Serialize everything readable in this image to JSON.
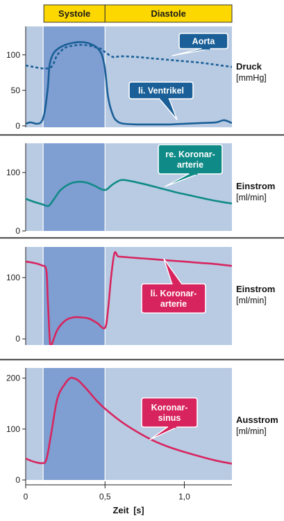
{
  "phases": [
    {
      "label": "Systole",
      "x_start": 0.11,
      "x_end": 0.5
    },
    {
      "label": "Diastole",
      "x_start": 0.5,
      "x_end": 1.3
    }
  ],
  "colors": {
    "background": "#b8cbe3",
    "systole_band": "#7f9ed1",
    "phase_bar": "#fdd800",
    "separator": "#555555",
    "aorta_ventricle": "#1a5f97",
    "coronary_artery_right": "#0f8a86",
    "coronary_artery_left": "#d8245e",
    "coronary_sinus": "#d8245e"
  },
  "x_axis": {
    "label_bold": "Zeit",
    "label_unit": "[s]",
    "min": 0,
    "max": 1.3,
    "ticks": [
      {
        "value": 0,
        "label": "0"
      },
      {
        "value": 0.5,
        "label": "0,5"
      },
      {
        "value": 1.0,
        "label": "1,0"
      }
    ]
  },
  "chart_data": [
    {
      "type": "line",
      "ylabel_bold": "Druck",
      "ylabel_unit": "[mmHg]",
      "ylim": [
        -2,
        140
      ],
      "yticks": [
        {
          "value": 0,
          "label": "0"
        },
        {
          "value": 50,
          "label": "50"
        },
        {
          "value": 100,
          "label": "100"
        }
      ],
      "series": [
        {
          "name": "Aorta",
          "style": "dashed",
          "color": "#1a5f97",
          "x": [
            0,
            0.05,
            0.1,
            0.14,
            0.17,
            0.2,
            0.25,
            0.3,
            0.35,
            0.4,
            0.45,
            0.48,
            0.5,
            0.55,
            0.6,
            0.7,
            0.8,
            0.9,
            1.0,
            1.1,
            1.2,
            1.3
          ],
          "y": [
            85,
            83,
            81,
            81,
            85,
            100,
            110,
            113,
            114,
            113,
            110,
            108,
            104,
            97,
            98,
            97,
            95,
            93,
            91,
            89,
            86,
            83
          ]
        },
        {
          "name": "li. Ventrikel",
          "style": "solid",
          "color": "#1a5f97",
          "x": [
            0,
            0.03,
            0.07,
            0.1,
            0.12,
            0.14,
            0.15,
            0.17,
            0.2,
            0.25,
            0.3,
            0.35,
            0.4,
            0.45,
            0.48,
            0.5,
            0.52,
            0.55,
            0.58,
            0.62,
            0.7,
            0.8,
            0.9,
            1.0,
            1.1,
            1.2,
            1.25,
            1.3
          ],
          "y": [
            3,
            5,
            3,
            6,
            20,
            55,
            85,
            100,
            108,
            114,
            117,
            118,
            116,
            110,
            100,
            80,
            40,
            15,
            6,
            3,
            2,
            2,
            2,
            3,
            4,
            5,
            8,
            4
          ]
        }
      ],
      "callouts": [
        {
          "lines": [
            "Aorta"
          ],
          "color": "#1a5f97"
        },
        {
          "lines": [
            "li. Ventrikel"
          ],
          "color": "#1a5f97"
        }
      ]
    },
    {
      "type": "line",
      "ylabel_bold": "Einstrom",
      "ylabel_unit": "[ml/min]",
      "ylim": [
        0,
        150
      ],
      "yticks": [
        {
          "value": 0,
          "label": "0"
        },
        {
          "value": 100,
          "label": "100"
        }
      ],
      "series": [
        {
          "name": "re. Koronararterie",
          "style": "solid",
          "color": "#0f8a86",
          "x": [
            0,
            0.05,
            0.1,
            0.13,
            0.15,
            0.18,
            0.22,
            0.28,
            0.33,
            0.38,
            0.43,
            0.48,
            0.51,
            0.55,
            0.6,
            0.65,
            0.75,
            0.85,
            0.95,
            1.05,
            1.15,
            1.25,
            1.3
          ],
          "y": [
            55,
            50,
            46,
            43,
            44,
            55,
            70,
            81,
            84,
            83,
            78,
            71,
            71,
            80,
            87,
            86,
            80,
            73,
            66,
            60,
            54,
            49,
            47
          ]
        }
      ],
      "callouts": [
        {
          "lines": [
            "re. Koronar-",
            "arterie"
          ],
          "color": "#0f8a86"
        }
      ]
    },
    {
      "type": "line",
      "ylabel_bold": "Einstrom",
      "ylabel_unit": "[ml/min]",
      "ylim": [
        -10,
        150
      ],
      "yticks": [
        {
          "value": 0,
          "label": "0"
        },
        {
          "value": 100,
          "label": "100"
        }
      ],
      "series": [
        {
          "name": "li. Koronararterie",
          "style": "solid",
          "color": "#d8245e",
          "x": [
            0,
            0.05,
            0.1,
            0.13,
            0.14,
            0.155,
            0.17,
            0.2,
            0.25,
            0.3,
            0.35,
            0.4,
            0.45,
            0.5,
            0.52,
            0.54,
            0.56,
            0.58,
            0.6,
            0.7,
            0.8,
            0.9,
            1.0,
            1.1,
            1.2,
            1.3
          ],
          "y": [
            126,
            124,
            120,
            112,
            60,
            -12,
            -5,
            15,
            30,
            35,
            35,
            33,
            26,
            18,
            50,
            105,
            140,
            135,
            134,
            132,
            130,
            128,
            126,
            124,
            122,
            119
          ]
        }
      ],
      "callouts": [
        {
          "lines": [
            "li. Koronar-",
            "arterie"
          ],
          "color": "#d8245e"
        }
      ]
    },
    {
      "type": "line",
      "ylabel_bold": "Ausstrom",
      "ylabel_unit": "[ml/min]",
      "ylim": [
        0,
        220
      ],
      "yticks": [
        {
          "value": 0,
          "label": "0"
        },
        {
          "value": 100,
          "label": "100"
        },
        {
          "value": 200,
          "label": "200"
        }
      ],
      "series": [
        {
          "name": "Koronarsinus",
          "style": "solid",
          "color": "#d8245e",
          "x": [
            0,
            0.05,
            0.1,
            0.13,
            0.16,
            0.2,
            0.25,
            0.28,
            0.3,
            0.33,
            0.38,
            0.45,
            0.5,
            0.6,
            0.7,
            0.8,
            0.9,
            1.0,
            1.1,
            1.2,
            1.3
          ],
          "y": [
            42,
            36,
            33,
            40,
            90,
            160,
            190,
            200,
            200,
            196,
            180,
            155,
            140,
            115,
            95,
            78,
            65,
            55,
            46,
            38,
            32
          ]
        }
      ],
      "callouts": [
        {
          "lines": [
            "Koronar-",
            "sinus"
          ],
          "color": "#d8245e"
        }
      ]
    }
  ]
}
